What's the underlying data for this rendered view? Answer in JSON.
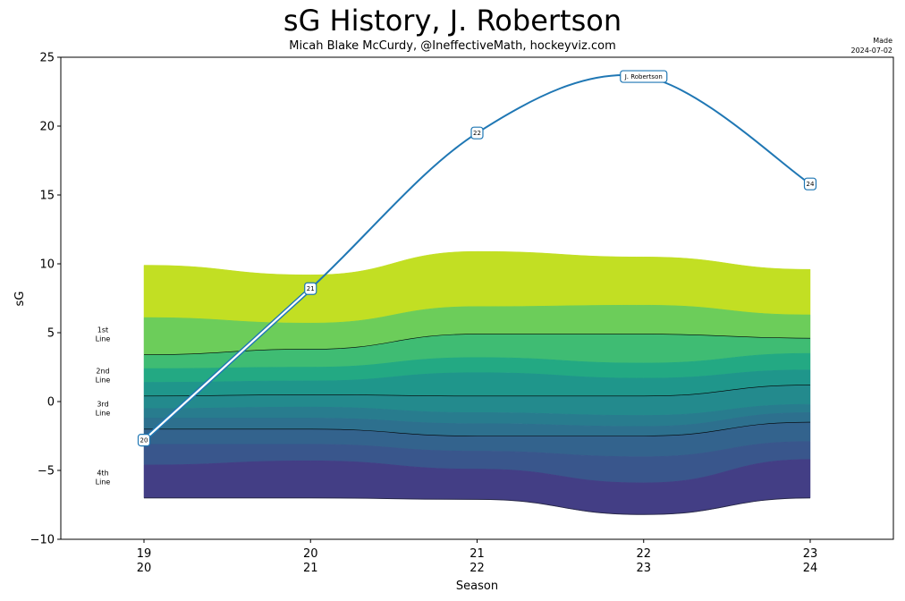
{
  "header": {
    "title": "sG History, J. Robertson",
    "subtitle": "Micah Blake McCurdy, @IneffectiveMath, hockeyviz.com",
    "made_label": "Made",
    "made_date": "2024-07-02"
  },
  "chart_data": {
    "type": "line",
    "title": "sG History, J. Robertson",
    "xlabel": "Season",
    "ylabel": "sG",
    "ylim": [
      -10,
      25
    ],
    "yticks": [
      -10,
      -5,
      0,
      5,
      10,
      15,
      20,
      25
    ],
    "grid": false,
    "categories": [
      {
        "top": "19",
        "bottom": "20"
      },
      {
        "top": "20",
        "bottom": "21"
      },
      {
        "top": "21",
        "bottom": "22"
      },
      {
        "top": "22",
        "bottom": "23"
      },
      {
        "top": "23",
        "bottom": "24"
      }
    ],
    "player": {
      "name": "J. Robertson",
      "color": "#1f77b4",
      "values": [
        -2.8,
        8.2,
        19.5,
        23.6,
        15.8
      ],
      "point_labels": [
        "20",
        "21",
        "22",
        "J. Robertson",
        "24"
      ]
    },
    "band_boundaries": [
      [
        9.9,
        9.2,
        10.9,
        10.5,
        9.6
      ],
      [
        6.1,
        5.7,
        6.9,
        7.0,
        6.3
      ],
      [
        3.4,
        3.8,
        4.9,
        4.9,
        4.6
      ],
      [
        2.4,
        2.5,
        3.2,
        2.8,
        3.5
      ],
      [
        1.4,
        1.5,
        2.1,
        1.7,
        2.3
      ],
      [
        0.4,
        0.5,
        0.4,
        0.4,
        1.2
      ],
      [
        -0.5,
        -0.4,
        -0.8,
        -1.0,
        -0.2
      ],
      [
        -1.2,
        -1.2,
        -1.6,
        -1.8,
        -0.8
      ],
      [
        -2.0,
        -2.0,
        -2.5,
        -2.5,
        -1.5
      ],
      [
        -3.1,
        -3.1,
        -3.6,
        -4.0,
        -2.9
      ],
      [
        -4.6,
        -4.3,
        -4.9,
        -5.9,
        -4.2
      ],
      [
        -7.0,
        -7.0,
        -7.1,
        -8.2,
        -7.0
      ]
    ],
    "band_colors": [
      "#c2df23",
      "#6ccd5a",
      "#3fbc73",
      "#23a983",
      "#1f968b",
      "#238a8d",
      "#287c8e",
      "#2d708e",
      "#33638d",
      "#39568c",
      "#433e85"
    ],
    "line_boundaries": [
      2,
      5,
      8
    ],
    "tier_labels": [
      {
        "line1": "1st",
        "line2": "Line",
        "y": 4.9
      },
      {
        "line1": "2nd",
        "line2": "Line",
        "y": 1.9
      },
      {
        "line1": "3rd",
        "line2": "Line",
        "y": -0.5
      },
      {
        "line1": "4th",
        "line2": "Line",
        "y": -5.5
      }
    ]
  }
}
